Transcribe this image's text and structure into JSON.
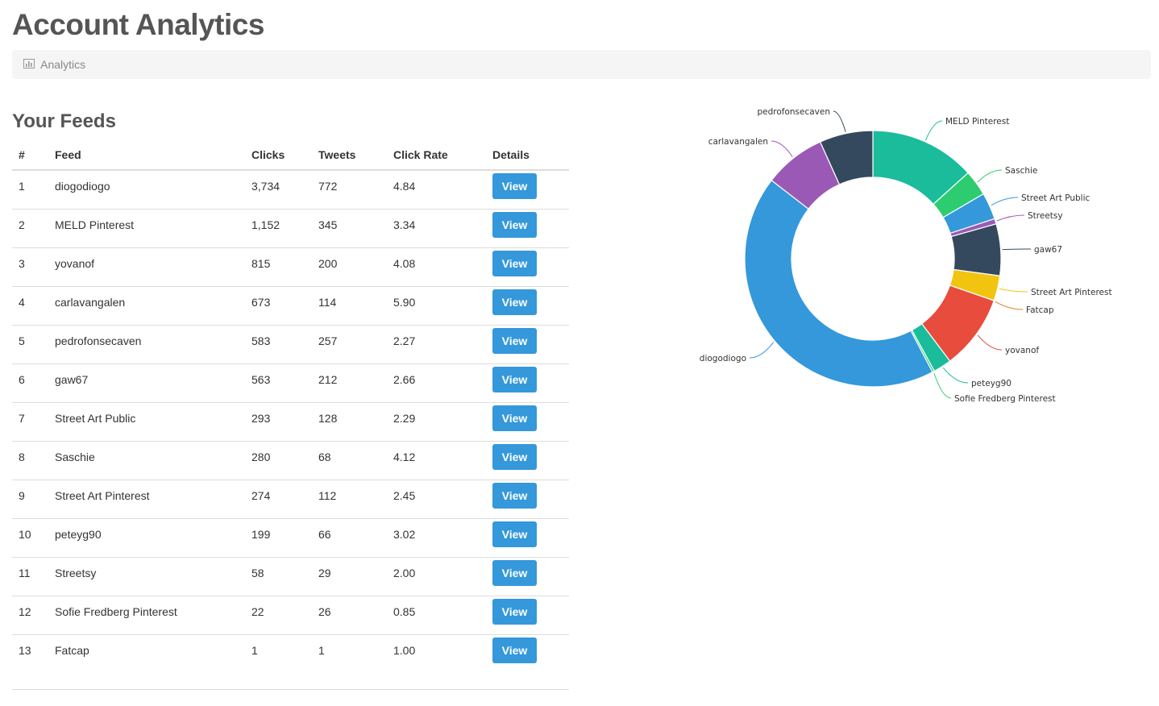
{
  "page": {
    "title": "Account Analytics"
  },
  "breadcrumb": {
    "icon": "bar-chart-icon",
    "label": "Analytics"
  },
  "feeds": {
    "heading": "Your Feeds",
    "columns": [
      "#",
      "Feed",
      "Clicks",
      "Tweets",
      "Click Rate",
      "Details"
    ],
    "view_label": "View",
    "rows": [
      {
        "num": "1",
        "feed": "diogodiogo",
        "clicks": "3,734",
        "tweets": "772",
        "rate": "4.84"
      },
      {
        "num": "2",
        "feed": "MELD Pinterest",
        "clicks": "1,152",
        "tweets": "345",
        "rate": "3.34"
      },
      {
        "num": "3",
        "feed": "yovanof",
        "clicks": "815",
        "tweets": "200",
        "rate": "4.08"
      },
      {
        "num": "4",
        "feed": "carlavangalen",
        "clicks": "673",
        "tweets": "114",
        "rate": "5.90"
      },
      {
        "num": "5",
        "feed": "pedrofonsecaven",
        "clicks": "583",
        "tweets": "257",
        "rate": "2.27"
      },
      {
        "num": "6",
        "feed": "gaw67",
        "clicks": "563",
        "tweets": "212",
        "rate": "2.66"
      },
      {
        "num": "7",
        "feed": "Street Art Public",
        "clicks": "293",
        "tweets": "128",
        "rate": "2.29"
      },
      {
        "num": "8",
        "feed": "Saschie",
        "clicks": "280",
        "tweets": "68",
        "rate": "4.12"
      },
      {
        "num": "9",
        "feed": "Street Art Pinterest",
        "clicks": "274",
        "tweets": "112",
        "rate": "2.45"
      },
      {
        "num": "10",
        "feed": "peteyg90",
        "clicks": "199",
        "tweets": "66",
        "rate": "3.02"
      },
      {
        "num": "11",
        "feed": "Streetsy",
        "clicks": "58",
        "tweets": "29",
        "rate": "2.00"
      },
      {
        "num": "12",
        "feed": "Sofie Fredberg Pinterest",
        "clicks": "22",
        "tweets": "26",
        "rate": "0.85"
      },
      {
        "num": "13",
        "feed": "Fatcap",
        "clicks": "1",
        "tweets": "1",
        "rate": "1.00"
      }
    ]
  },
  "colors": {
    "button": "#3498db"
  },
  "chart_data": {
    "type": "pie",
    "variant": "donut",
    "title": "",
    "start_angle_deg": 0,
    "direction": "clockwise",
    "slices": [
      {
        "label": "MELD Pinterest",
        "value": 1152,
        "color": "#1abc9c"
      },
      {
        "label": "Saschie",
        "value": 280,
        "color": "#2ecc71"
      },
      {
        "label": "Street Art Public",
        "value": 293,
        "color": "#3498db"
      },
      {
        "label": "Streetsy",
        "value": 58,
        "color": "#9b59b6"
      },
      {
        "label": "gaw67",
        "value": 563,
        "color": "#34495e"
      },
      {
        "label": "Street Art Pinterest",
        "value": 274,
        "color": "#f1c40f"
      },
      {
        "label": "Fatcap",
        "value": 1,
        "color": "#e67e22"
      },
      {
        "label": "yovanof",
        "value": 815,
        "color": "#e74c3c"
      },
      {
        "label": "peteyg90",
        "value": 199,
        "color": "#1abc9c"
      },
      {
        "label": "Sofie Fredberg Pinterest",
        "value": 22,
        "color": "#2ecc71"
      },
      {
        "label": "diogodiogo",
        "value": 3734,
        "color": "#3498db"
      },
      {
        "label": "carlavangalen",
        "value": 673,
        "color": "#9b59b6"
      },
      {
        "label": "pedrofonsecaven",
        "value": 583,
        "color": "#34495e"
      }
    ]
  }
}
